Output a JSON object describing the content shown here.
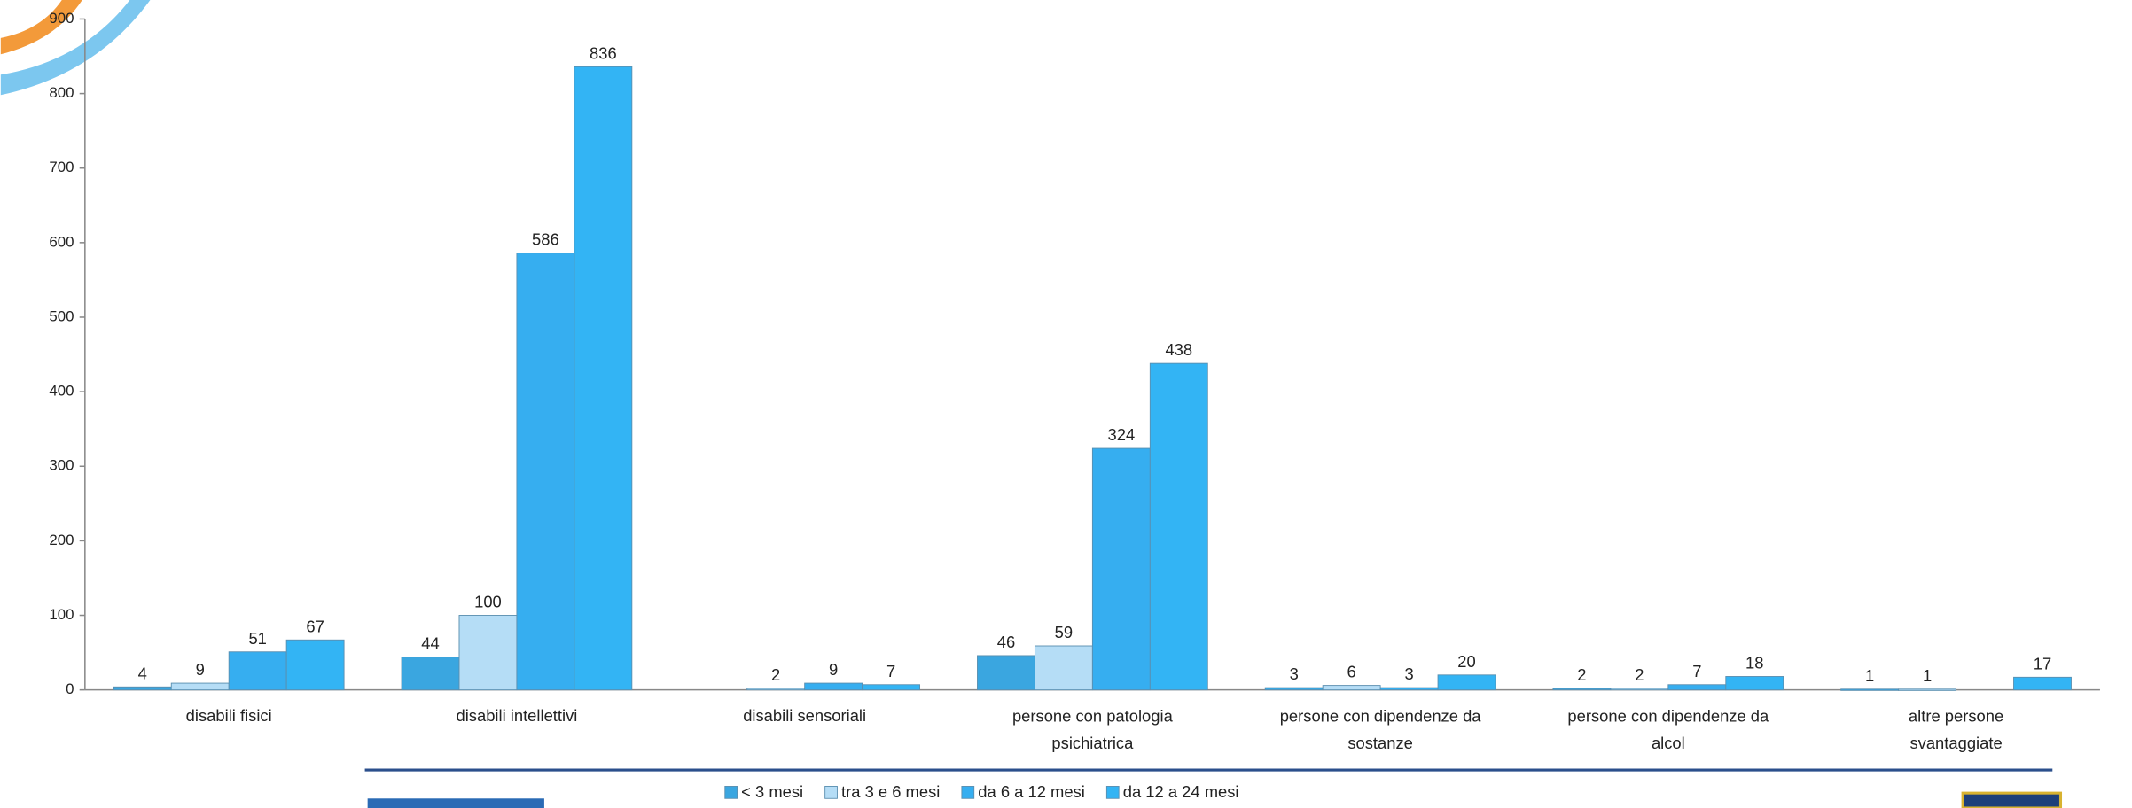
{
  "chart_data": {
    "type": "bar",
    "categories": [
      "disabili fisici",
      "disabili intellettivi",
      "disabili sensoriali",
      "persone con patologia psichiatrica",
      "persone con dipendenze da sostanze",
      "persone con dipendenze da alcol",
      "altre persone svantaggiate"
    ],
    "series": [
      {
        "name": "< 3 mesi",
        "color": "#3aa6e0",
        "values": [
          4,
          44,
          null,
          46,
          3,
          2,
          1
        ]
      },
      {
        "name": "tra 3 e 6 mesi",
        "color": "#b5ddf6",
        "values": [
          9,
          100,
          2,
          59,
          6,
          2,
          1
        ]
      },
      {
        "name": "da 6 a 12 mesi",
        "color": "#36aef0",
        "values": [
          51,
          586,
          9,
          324,
          3,
          7,
          null
        ]
      },
      {
        "name": "da 12 a 24 mesi",
        "color": "#33b4f4",
        "values": [
          67,
          836,
          7,
          438,
          20,
          18,
          17
        ]
      }
    ],
    "ylim": [
      0,
      900
    ],
    "yticks": [
      0,
      100,
      200,
      300,
      400,
      500,
      600,
      700,
      800,
      900
    ],
    "legend": "bottom"
  }
}
